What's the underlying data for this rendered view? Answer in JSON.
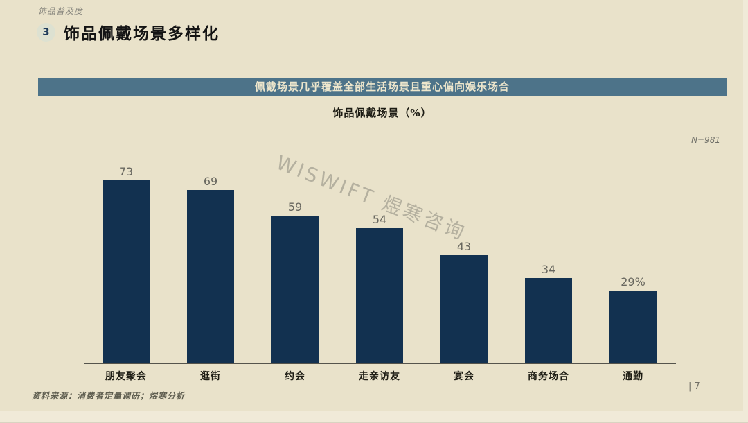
{
  "slide": {
    "eyebrow": "饰品普及度",
    "section_number": "3",
    "title": "饰品佩戴场景多样化",
    "banner": "佩戴场景几乎覆盖全部生活场景且重心偏向娱乐场合",
    "sample_size": "N=981",
    "watermark": "WISWIFT 煜寒咨询",
    "source": "资料来源：消费者定量调研；煜寒分析",
    "page_number": "| 7"
  },
  "chart_data": {
    "type": "bar",
    "title": "饰品佩戴场景（%）",
    "categories": [
      "朋友聚会",
      "逛街",
      "约会",
      "走亲访友",
      "宴会",
      "商务场合",
      "通勤"
    ],
    "values": [
      73,
      69,
      59,
      54,
      43,
      34,
      29
    ],
    "value_labels": [
      "73",
      "69",
      "59",
      "54",
      "43",
      "34",
      "29%"
    ],
    "unit": "%",
    "ylim": [
      0,
      100
    ],
    "grid": false,
    "legend": "none",
    "annotations": [
      "N=981"
    ]
  },
  "colors": {
    "slide_background": "#e9e2ca",
    "page_margin": "#f0ead8",
    "banner_background": "#4d7389",
    "banner_text": "#ede6cc",
    "bar_fill": "#123150",
    "value_label": "#68675f",
    "section_circle": "#dde1d1",
    "section_number_text": "#1d3a5a",
    "axis_line": "#55544c"
  }
}
